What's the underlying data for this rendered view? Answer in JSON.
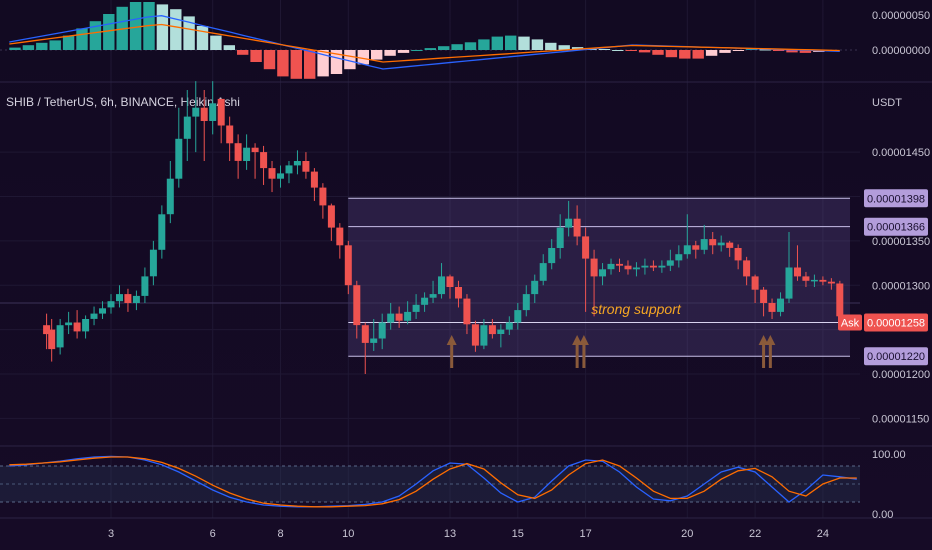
{
  "chart_data": {
    "type": "candlestick",
    "title": "SHIB / TetherUS, 6h, BINANCE, Heikin Ashi",
    "currency": "USDT",
    "price_ticks": [
      "0.00001450",
      "0.00001350",
      "0.00001300",
      "0.00001200",
      "0.00001150"
    ],
    "price_ylim": [
      1.12e-05,
      1.52e-05
    ],
    "x_ticks": [
      "3",
      "6",
      "8",
      "10",
      "13",
      "15",
      "17",
      "20",
      "22",
      "24"
    ],
    "x_tick_days": [
      3,
      6,
      8,
      10,
      13,
      15,
      17,
      20,
      22,
      24
    ],
    "channel": {
      "upper": 1.398e-05,
      "inner_upper": 1.366e-05,
      "lower": 1.22e-05,
      "start_day": 10,
      "end_day": 24.8
    },
    "price_tags": [
      {
        "label": "0.00001398",
        "price": 1.398e-05,
        "kind": "level"
      },
      {
        "label": "0.00001366",
        "price": 1.366e-05,
        "kind": "level"
      },
      {
        "label": "0.00001258",
        "price": 1.258e-05,
        "kind": "ask",
        "prefix": "Ask"
      },
      {
        "label": "0.00001220",
        "price": 1.22e-05,
        "kind": "level"
      }
    ],
    "annotation": "strong support",
    "arrows_at_days": [
      13.05,
      16.75,
      16.95,
      22.25,
      22.45
    ],
    "candles": [
      [
        1.1,
        1.255,
        1.245,
        1.268,
        1.228
      ],
      [
        1.25,
        1.25,
        1.228,
        1.262,
        1.214
      ],
      [
        1.5,
        1.23,
        1.255,
        1.262,
        1.222
      ],
      [
        1.75,
        1.255,
        1.258,
        1.27,
        1.245
      ],
      [
        2.0,
        1.258,
        1.248,
        1.272,
        1.24
      ],
      [
        2.25,
        1.248,
        1.262,
        1.266,
        1.24
      ],
      [
        2.5,
        1.262,
        1.268,
        1.276,
        1.255
      ],
      [
        2.75,
        1.268,
        1.274,
        1.282,
        1.262
      ],
      [
        3.0,
        1.275,
        1.282,
        1.29,
        1.268
      ],
      [
        3.25,
        1.282,
        1.29,
        1.3,
        1.275
      ],
      [
        3.5,
        1.29,
        1.28,
        1.296,
        1.27
      ],
      [
        3.75,
        1.28,
        1.288,
        1.294,
        1.272
      ],
      [
        4.0,
        1.288,
        1.31,
        1.32,
        1.28
      ],
      [
        4.25,
        1.31,
        1.34,
        1.35,
        1.3
      ],
      [
        4.5,
        1.34,
        1.38,
        1.39,
        1.33
      ],
      [
        4.75,
        1.38,
        1.42,
        1.44,
        1.37
      ],
      [
        5.0,
        1.42,
        1.465,
        1.5,
        1.41
      ],
      [
        5.25,
        1.465,
        1.49,
        1.52,
        1.44
      ],
      [
        5.5,
        1.49,
        1.5,
        1.53,
        1.45
      ],
      [
        5.75,
        1.5,
        1.485,
        1.52,
        1.44
      ],
      [
        6.0,
        1.485,
        1.505,
        1.53,
        1.47
      ],
      [
        6.25,
        1.51,
        1.48,
        1.51,
        1.46
      ],
      [
        6.5,
        1.48,
        1.46,
        1.49,
        1.44
      ],
      [
        6.75,
        1.46,
        1.44,
        1.47,
        1.42
      ],
      [
        7.0,
        1.44,
        1.455,
        1.47,
        1.43
      ],
      [
        7.25,
        1.455,
        1.45,
        1.46,
        1.42
      ],
      [
        7.5,
        1.45,
        1.432,
        1.457,
        1.413
      ],
      [
        7.75,
        1.432,
        1.42,
        1.44,
        1.405
      ],
      [
        8.0,
        1.42,
        1.426,
        1.435,
        1.41
      ],
      [
        8.25,
        1.426,
        1.435,
        1.44,
        1.415
      ],
      [
        8.5,
        1.435,
        1.44,
        1.452,
        1.425
      ],
      [
        8.75,
        1.44,
        1.428,
        1.45,
        1.42
      ],
      [
        9.0,
        1.428,
        1.41,
        1.432,
        1.395
      ],
      [
        9.25,
        1.41,
        1.39,
        1.415,
        1.375
      ],
      [
        9.5,
        1.39,
        1.365,
        1.392,
        1.35
      ],
      [
        9.75,
        1.365,
        1.345,
        1.37,
        1.33
      ],
      [
        10.0,
        1.345,
        1.3,
        1.35,
        1.29
      ],
      [
        10.25,
        1.3,
        1.255,
        1.305,
        1.24
      ],
      [
        10.5,
        1.255,
        1.235,
        1.258,
        1.2
      ],
      [
        10.75,
        1.235,
        1.24,
        1.262,
        1.226
      ],
      [
        11.0,
        1.24,
        1.258,
        1.268,
        1.228
      ],
      [
        11.25,
        1.258,
        1.268,
        1.28,
        1.25
      ],
      [
        11.5,
        1.268,
        1.26,
        1.276,
        1.252
      ],
      [
        11.75,
        1.26,
        1.27,
        1.282,
        1.256
      ],
      [
        12.0,
        1.27,
        1.278,
        1.29,
        1.262
      ],
      [
        12.25,
        1.278,
        1.286,
        1.292,
        1.27
      ],
      [
        12.5,
        1.286,
        1.29,
        1.305,
        1.28
      ],
      [
        12.75,
        1.29,
        1.31,
        1.325,
        1.285
      ],
      [
        13.0,
        1.31,
        1.298,
        1.312,
        1.285
      ],
      [
        13.25,
        1.298,
        1.285,
        1.305,
        1.275
      ],
      [
        13.5,
        1.285,
        1.256,
        1.29,
        1.245
      ],
      [
        13.75,
        1.256,
        1.232,
        1.26,
        1.225
      ],
      [
        14.0,
        1.232,
        1.255,
        1.262,
        1.228
      ],
      [
        14.25,
        1.255,
        1.245,
        1.262,
        1.24
      ],
      [
        14.5,
        1.245,
        1.25,
        1.256,
        1.23
      ],
      [
        14.75,
        1.25,
        1.258,
        1.265,
        1.244
      ],
      [
        15.0,
        1.258,
        1.272,
        1.28,
        1.25
      ],
      [
        15.25,
        1.272,
        1.29,
        1.3,
        1.265
      ],
      [
        15.5,
        1.29,
        1.305,
        1.312,
        1.28
      ],
      [
        15.75,
        1.305,
        1.325,
        1.335,
        1.3
      ],
      [
        16.0,
        1.325,
        1.342,
        1.352,
        1.318
      ],
      [
        16.25,
        1.342,
        1.365,
        1.38,
        1.33
      ],
      [
        16.5,
        1.365,
        1.375,
        1.395,
        1.355
      ],
      [
        16.75,
        1.375,
        1.355,
        1.39,
        1.345
      ],
      [
        17.0,
        1.355,
        1.33,
        1.365,
        1.27
      ],
      [
        17.25,
        1.33,
        1.31,
        1.34,
        1.265
      ],
      [
        17.5,
        1.31,
        1.318,
        1.325,
        1.3
      ],
      [
        17.75,
        1.318,
        1.324,
        1.33,
        1.312
      ],
      [
        18.0,
        1.324,
        1.322,
        1.33,
        1.315
      ],
      [
        18.25,
        1.322,
        1.318,
        1.328,
        1.312
      ],
      [
        18.5,
        1.318,
        1.32,
        1.326,
        1.31
      ],
      [
        18.75,
        1.32,
        1.322,
        1.33,
        1.312
      ],
      [
        19.0,
        1.322,
        1.32,
        1.328,
        1.316
      ],
      [
        19.25,
        1.32,
        1.322,
        1.328,
        1.314
      ],
      [
        19.5,
        1.322,
        1.328,
        1.34,
        1.316
      ],
      [
        19.75,
        1.328,
        1.335,
        1.345,
        1.32
      ],
      [
        20.0,
        1.335,
        1.345,
        1.38,
        1.33
      ],
      [
        20.25,
        1.345,
        1.34,
        1.35,
        1.33
      ],
      [
        20.5,
        1.34,
        1.352,
        1.368,
        1.335
      ],
      [
        20.75,
        1.352,
        1.345,
        1.36,
        1.335
      ],
      [
        21.0,
        1.345,
        1.348,
        1.356,
        1.338
      ],
      [
        21.25,
        1.348,
        1.342,
        1.35,
        1.332
      ],
      [
        21.5,
        1.342,
        1.328,
        1.346,
        1.318
      ],
      [
        21.75,
        1.328,
        1.31,
        1.332,
        1.3
      ],
      [
        22.0,
        1.31,
        1.295,
        1.312,
        1.28
      ],
      [
        22.25,
        1.295,
        1.28,
        1.298,
        1.265
      ],
      [
        22.5,
        1.28,
        1.27,
        1.285,
        1.262
      ],
      [
        22.75,
        1.27,
        1.285,
        1.292,
        1.265
      ],
      [
        23.0,
        1.285,
        1.32,
        1.36,
        1.28
      ],
      [
        23.25,
        1.32,
        1.31,
        1.345,
        1.305
      ],
      [
        23.5,
        1.31,
        1.305,
        1.315,
        1.298
      ],
      [
        23.75,
        1.305,
        1.306,
        1.312,
        1.298
      ],
      [
        24.0,
        1.306,
        1.304,
        1.31,
        1.3
      ],
      [
        24.25,
        1.304,
        1.302,
        1.308,
        1.295
      ],
      [
        24.5,
        1.302,
        1.265,
        1.305,
        1.25
      ]
    ],
    "macd": {
      "ticks": [
        "0.00000050",
        "0.00000000"
      ],
      "histogram": [
        0.05,
        0.1,
        0.15,
        0.2,
        0.3,
        0.45,
        0.6,
        0.75,
        0.9,
        1.0,
        1.0,
        0.95,
        0.85,
        0.7,
        0.5,
        0.3,
        0.1,
        -0.1,
        -0.25,
        -0.4,
        -0.55,
        -0.6,
        -0.6,
        -0.55,
        -0.5,
        -0.4,
        -0.3,
        -0.2,
        -0.12,
        -0.06,
        0.0,
        0.04,
        0.08,
        0.12,
        0.16,
        0.22,
        0.28,
        0.3,
        0.28,
        0.22,
        0.15,
        0.1,
        0.06,
        0.04,
        0.02,
        0.0,
        -0.02,
        -0.05,
        -0.1,
        -0.15,
        -0.18,
        -0.18,
        -0.12,
        -0.06,
        -0.02,
        0.02,
        0.01,
        -0.02,
        -0.05,
        -0.06,
        -0.04,
        -0.02
      ]
    },
    "stoch": {
      "ticks": [
        "100.00",
        "0.00"
      ],
      "k": [
        [
          0,
          80
        ],
        [
          0.5,
          82
        ],
        [
          1,
          85
        ],
        [
          1.5,
          88
        ],
        [
          2,
          92
        ],
        [
          2.5,
          95
        ],
        [
          3,
          96
        ],
        [
          3.5,
          95
        ],
        [
          4,
          90
        ],
        [
          4.5,
          82
        ],
        [
          5,
          70
        ],
        [
          5.5,
          55
        ],
        [
          6,
          40
        ],
        [
          6.5,
          28
        ],
        [
          7,
          20
        ],
        [
          7.5,
          15
        ],
        [
          8,
          13
        ],
        [
          8.5,
          12
        ],
        [
          9,
          12
        ],
        [
          9.5,
          13
        ],
        [
          10,
          14
        ],
        [
          10.5,
          16
        ],
        [
          11,
          20
        ],
        [
          11.5,
          30
        ],
        [
          12,
          50
        ],
        [
          12.5,
          72
        ],
        [
          13,
          85
        ],
        [
          13.5,
          83
        ],
        [
          14,
          60
        ],
        [
          14.5,
          35
        ],
        [
          15,
          20
        ],
        [
          15.5,
          28
        ],
        [
          16,
          55
        ],
        [
          16.5,
          80
        ],
        [
          17,
          90
        ],
        [
          17.5,
          88
        ],
        [
          18,
          70
        ],
        [
          18.5,
          45
        ],
        [
          19,
          25
        ],
        [
          19.5,
          22
        ],
        [
          20,
          30
        ],
        [
          20.5,
          50
        ],
        [
          21,
          70
        ],
        [
          21.5,
          78
        ],
        [
          22,
          70
        ],
        [
          22.5,
          45
        ],
        [
          23,
          20
        ],
        [
          23.5,
          40
        ],
        [
          24,
          65
        ],
        [
          24.5,
          62
        ],
        [
          25,
          58
        ]
      ],
      "d": [
        [
          0,
          82
        ],
        [
          0.5,
          83
        ],
        [
          1,
          85
        ],
        [
          1.5,
          87
        ],
        [
          2,
          90
        ],
        [
          2.5,
          93
        ],
        [
          3,
          95
        ],
        [
          3.5,
          95
        ],
        [
          4,
          92
        ],
        [
          4.5,
          86
        ],
        [
          5,
          76
        ],
        [
          5.5,
          63
        ],
        [
          6,
          48
        ],
        [
          6.5,
          35
        ],
        [
          7,
          25
        ],
        [
          7.5,
          18
        ],
        [
          8,
          15
        ],
        [
          8.5,
          13
        ],
        [
          9,
          12
        ],
        [
          9.5,
          12
        ],
        [
          10,
          13
        ],
        [
          10.5,
          14
        ],
        [
          11,
          17
        ],
        [
          11.5,
          24
        ],
        [
          12,
          38
        ],
        [
          12.5,
          58
        ],
        [
          13,
          75
        ],
        [
          13.5,
          84
        ],
        [
          14,
          75
        ],
        [
          14.5,
          52
        ],
        [
          15,
          32
        ],
        [
          15.5,
          26
        ],
        [
          16,
          40
        ],
        [
          16.5,
          65
        ],
        [
          17,
          84
        ],
        [
          17.5,
          90
        ],
        [
          18,
          80
        ],
        [
          18.5,
          60
        ],
        [
          19,
          38
        ],
        [
          19.5,
          26
        ],
        [
          20,
          26
        ],
        [
          20.5,
          38
        ],
        [
          21,
          58
        ],
        [
          21.5,
          72
        ],
        [
          22,
          76
        ],
        [
          22.5,
          62
        ],
        [
          23,
          38
        ],
        [
          23.5,
          30
        ],
        [
          24,
          50
        ],
        [
          24.5,
          60
        ],
        [
          25,
          60
        ]
      ]
    }
  }
}
